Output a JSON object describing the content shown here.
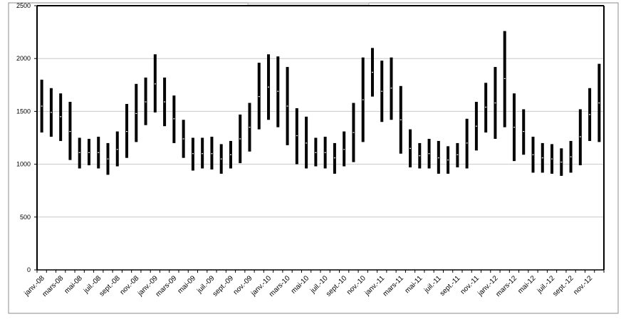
{
  "chart_data": {
    "type": "bar",
    "subtype": "floating-range",
    "title": "",
    "xlabel": "",
    "ylabel": "",
    "ylim": [
      0,
      2500
    ],
    "yticks": [
      0,
      500,
      1000,
      1500,
      2000,
      2500
    ],
    "grid": true,
    "legend": "top-center",
    "colors": {
      "bar": "#000000",
      "grid": "#c8c8c8",
      "axis": "#000000",
      "frame": "#8c8c8c",
      "marker": "#ffffff"
    },
    "categories": [
      "janv.-08",
      "févr.-08",
      "mars-08",
      "avr.-08",
      "mai-08",
      "juin-08",
      "juil.-08",
      "août-08",
      "sept.-08",
      "oct.-08",
      "nov.-08",
      "déc.-08",
      "janv.-09",
      "févr.-09",
      "mars-09",
      "avr.-09",
      "mai-09",
      "juin-09",
      "juil.-09",
      "août-09",
      "sept.-09",
      "oct.-09",
      "nov.-09",
      "déc.-09",
      "janv.-10",
      "févr.-10",
      "mars-10",
      "avr.-10",
      "mai-10",
      "juin-10",
      "juil.-10",
      "août-10",
      "sept.-10",
      "oct.-10",
      "nov.-10",
      "déc.-10",
      "janv.-11",
      "févr.-11",
      "mars-11",
      "avr.-11",
      "mai-11",
      "juin-11",
      "juil.-11",
      "août-11",
      "sept.-11",
      "oct.-11",
      "nov.-11",
      "déc.-11",
      "janv.-12",
      "févr.-12",
      "mars-12",
      "avr.-12",
      "mai-12",
      "juin-12",
      "juil.-12",
      "août-12",
      "sept.-12",
      "oct.-12",
      "nov.-12",
      "déc.-12"
    ],
    "tick_labels": [
      "janv.-08",
      "mars-08",
      "mai-08",
      "juil.-08",
      "sept.-08",
      "nov.-08",
      "janv.-09",
      "mars-09",
      "mai-09",
      "juil.-09",
      "sept.-09",
      "nov.-09",
      "janv.-10",
      "mars-10",
      "mai-10",
      "juil.-10",
      "sept.-10",
      "nov.-10",
      "janv.-11",
      "mars-11",
      "mai-11",
      "juil.-11",
      "sept.-11",
      "nov.-11",
      "janv.-12",
      "mars-12",
      "mai-12",
      "juil.-12",
      "sept.-12",
      "nov.-12"
    ],
    "low": [
      1300,
      1260,
      1220,
      1040,
      960,
      990,
      960,
      900,
      980,
      1060,
      1210,
      1370,
      1490,
      1360,
      1200,
      1060,
      940,
      960,
      950,
      910,
      960,
      1010,
      1120,
      1330,
      1420,
      1350,
      1180,
      1000,
      960,
      980,
      960,
      910,
      980,
      1020,
      1210,
      1640,
      1400,
      1420,
      1100,
      970,
      960,
      960,
      910,
      910,
      970,
      960,
      1130,
      1300,
      1240,
      1350,
      1030,
      1090,
      920,
      920,
      910,
      890,
      920,
      990,
      1220,
      1210
    ],
    "high": [
      1800,
      1720,
      1670,
      1590,
      1250,
      1240,
      1260,
      1200,
      1310,
      1570,
      1760,
      1820,
      2040,
      1820,
      1650,
      1420,
      1250,
      1250,
      1260,
      1190,
      1220,
      1470,
      1580,
      1960,
      2040,
      2020,
      1920,
      1530,
      1450,
      1250,
      1260,
      1200,
      1310,
      1580,
      2010,
      2100,
      1980,
      2010,
      1740,
      1330,
      1200,
      1240,
      1220,
      1170,
      1200,
      1430,
      1590,
      1770,
      1920,
      2260,
      1670,
      1520,
      1260,
      1200,
      1190,
      1150,
      1220,
      1520,
      1720,
      1950
    ],
    "mid": [
      1550,
      1490,
      1450,
      1310,
      1110,
      1110,
      1110,
      1050,
      1140,
      1310,
      1480,
      1590,
      1760,
      1590,
      1430,
      1240,
      1100,
      1100,
      1100,
      1050,
      1090,
      1240,
      1350,
      1640,
      1730,
      1690,
      1550,
      1270,
      1200,
      1110,
      1110,
      1060,
      1140,
      1300,
      1610,
      1870,
      1690,
      1720,
      1420,
      1150,
      1080,
      1100,
      1060,
      1040,
      1090,
      1200,
      1360,
      1540,
      1580,
      1810,
      1350,
      1310,
      1090,
      1060,
      1050,
      1020,
      1070,
      1260,
      1470,
      1580
    ]
  }
}
